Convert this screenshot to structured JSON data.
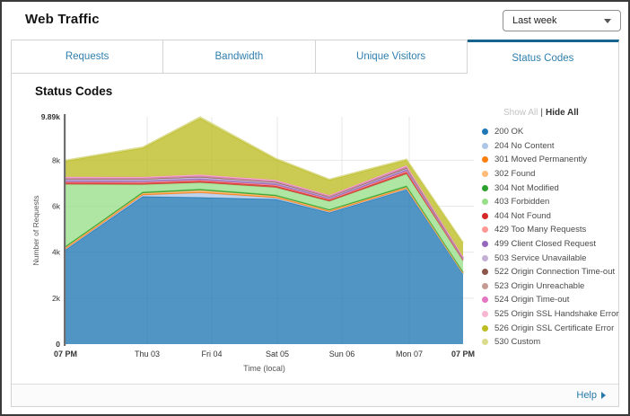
{
  "header": {
    "title": "Web Traffic",
    "range_select": {
      "value": "Last week"
    }
  },
  "tabs": [
    {
      "label": "Requests"
    },
    {
      "label": "Bandwidth"
    },
    {
      "label": "Unique Visitors"
    },
    {
      "label": "Status Codes"
    }
  ],
  "panel": {
    "title": "Status Codes"
  },
  "legend": {
    "show_all": "Show All",
    "divider": "|",
    "hide_all": "Hide All"
  },
  "footer": {
    "help_label": "Help"
  },
  "colors": {
    "accent_blue": "#2f7fae",
    "active_tab_border": "#17658e",
    "axis_line": "#6f6f6f",
    "grid_line": "#e7e7e7",
    "tick_text": "#333333",
    "axis_title_text": "#555555"
  },
  "chart_data": {
    "type": "area",
    "stacked": true,
    "title": "Status Codes",
    "xlabel": "Time (local)",
    "ylabel": "Number of Requests",
    "ylim": [
      0,
      9890
    ],
    "grid": true,
    "legend_position": "right",
    "x_tick_labels": [
      "07 PM",
      "Thu 03",
      "Fri 04",
      "Sat 05",
      "Sun 06",
      "Mon 07",
      "07 PM"
    ],
    "y_ticks": [
      {
        "v": 0,
        "label": "0",
        "bold": true
      },
      {
        "v": 2000,
        "label": "2k",
        "bold": false
      },
      {
        "v": 4000,
        "label": "4k",
        "bold": false
      },
      {
        "v": 6000,
        "label": "6k",
        "bold": false
      },
      {
        "v": 8000,
        "label": "8k",
        "bold": false
      },
      {
        "v": 9890,
        "label": "9.89k",
        "bold": true
      }
    ],
    "series": [
      {
        "name": "200 OK",
        "color": "#1f77b4",
        "values": [
          4100,
          6420,
          6380,
          6300,
          5720,
          6720,
          3050
        ]
      },
      {
        "name": "204 No Content",
        "color": "#aec7e8",
        "values": [
          30,
          60,
          200,
          60,
          30,
          40,
          20
        ]
      },
      {
        "name": "301 Moved Permanently",
        "color": "#ff7f0e",
        "values": [
          35,
          35,
          40,
          35,
          30,
          35,
          20
        ]
      },
      {
        "name": "302 Found",
        "color": "#ffbb78",
        "values": [
          40,
          50,
          70,
          45,
          35,
          40,
          25
        ]
      },
      {
        "name": "304 Not Modified",
        "color": "#2ca02c",
        "values": [
          45,
          45,
          50,
          45,
          35,
          45,
          25
        ]
      },
      {
        "name": "403 Forbidden",
        "color": "#98df8a",
        "values": [
          2700,
          330,
          280,
          330,
          360,
          520,
          480
        ]
      },
      {
        "name": "404 Not Found",
        "color": "#d62728",
        "values": [
          70,
          70,
          75,
          70,
          60,
          80,
          45
        ]
      },
      {
        "name": "429 Too Many Requests",
        "color": "#ff9896",
        "values": [
          35,
          35,
          35,
          35,
          30,
          40,
          20
        ]
      },
      {
        "name": "499 Client Closed Request",
        "color": "#9467bd",
        "values": [
          55,
          60,
          60,
          55,
          45,
          60,
          30
        ]
      },
      {
        "name": "503 Service Unavailable",
        "color": "#c5b0d5",
        "values": [
          60,
          60,
          65,
          55,
          45,
          60,
          30
        ]
      },
      {
        "name": "522 Origin Connection Time-out",
        "color": "#8c564b",
        "values": [
          20,
          20,
          20,
          20,
          18,
          25,
          12
        ]
      },
      {
        "name": "523 Origin Unreachable",
        "color": "#c49c94",
        "values": [
          20,
          20,
          20,
          20,
          18,
          25,
          12
        ]
      },
      {
        "name": "524 Origin Time-out",
        "color": "#e377c2",
        "values": [
          35,
          35,
          40,
          35,
          30,
          45,
          22
        ]
      },
      {
        "name": "525 Origin SSL Handshake Error",
        "color": "#f7b6d2",
        "values": [
          35,
          35,
          40,
          35,
          30,
          45,
          22
        ]
      },
      {
        "name": "526 Origin SSL Certificate Error",
        "color": "#bcbd22",
        "values": [
          680,
          1250,
          2450,
          900,
          650,
          220,
          590
        ]
      },
      {
        "name": "530 Custom",
        "color": "#dbdb8d",
        "values": [
          45,
          50,
          60,
          50,
          40,
          50,
          30
        ]
      }
    ]
  }
}
